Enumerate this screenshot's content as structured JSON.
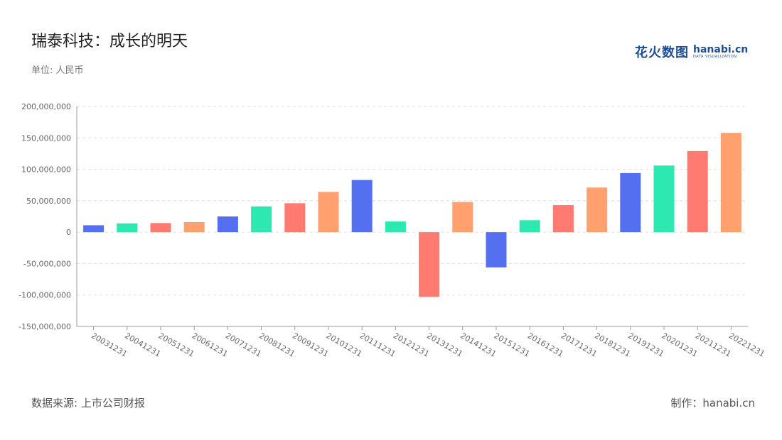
{
  "header": {
    "title": "瑞泰科技：成长的明天",
    "unit": "单位: 人民币"
  },
  "logo": {
    "cn": "花火数图",
    "en": "hanabi.cn",
    "tagline": "DATA VISUALIZATION"
  },
  "footer": {
    "source": "数据来源: 上市公司财报",
    "maker": "制作：hanabi.cn"
  },
  "colors": [
    "#5470f0",
    "#2de8b0",
    "#ff7a70",
    "#ffa06e"
  ],
  "chart_data": {
    "type": "bar",
    "categories": [
      "20031231",
      "20041231",
      "20051231",
      "20061231",
      "20071231",
      "20081231",
      "20091231",
      "20101231",
      "20111231",
      "20121231",
      "20131231",
      "20141231",
      "20151231",
      "20161231",
      "20171231",
      "20181231",
      "20191231",
      "20201231",
      "20211231",
      "20221231"
    ],
    "values": [
      11000000,
      14000000,
      14500000,
      16000000,
      25000000,
      41000000,
      46000000,
      64000000,
      83000000,
      17000000,
      -103000000,
      48000000,
      -56000000,
      19000000,
      43000000,
      71000000,
      94000000,
      106000000,
      129000000,
      158000000
    ],
    "yticks": [
      "200,000,000",
      "150,000,000",
      "100,000,000",
      "50,000,000",
      "0",
      "-50,000,000",
      "-100,000,000",
      "-150,000,000"
    ],
    "ylim": [
      -150000000,
      200000000
    ],
    "grid": true
  }
}
